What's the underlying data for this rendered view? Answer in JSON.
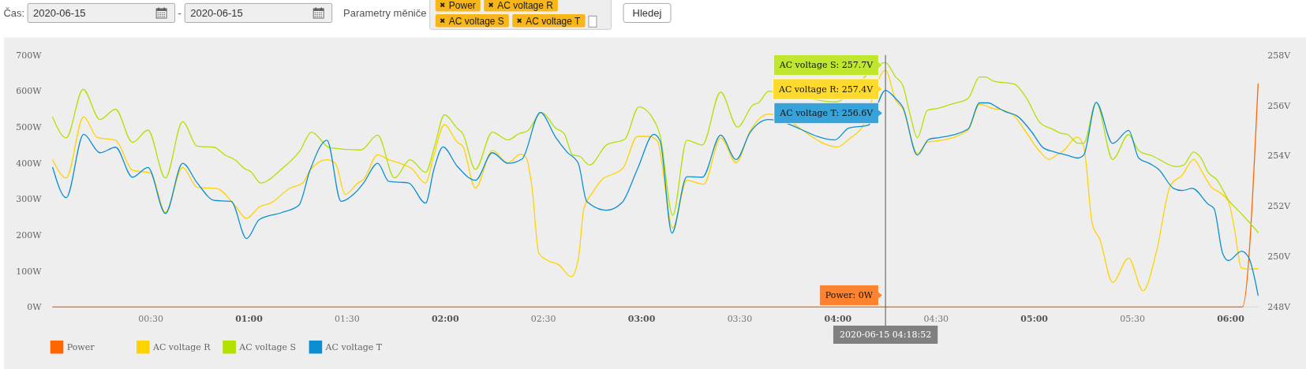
{
  "chart_data": {
    "type": "line",
    "xlim": [
      0,
      6.14
    ],
    "xticks": [
      {
        "value": 0.5,
        "label": "00:30"
      },
      {
        "value": 1,
        "label": "01:00"
      },
      {
        "value": 1.5,
        "label": "01:30"
      },
      {
        "value": 2,
        "label": "02:00"
      },
      {
        "value": 2.5,
        "label": "02:30"
      },
      {
        "value": 3,
        "label": "03:00"
      },
      {
        "value": 3.5,
        "label": "03:30"
      },
      {
        "value": 4,
        "label": "04:00"
      },
      {
        "value": 4.5,
        "label": "04:30"
      },
      {
        "value": 5,
        "label": "05:00"
      },
      {
        "value": 5.5,
        "label": "05:30"
      },
      {
        "value": 6,
        "label": "06:00"
      }
    ],
    "ylim": [
      0,
      700
    ],
    "yticks": [
      {
        "value": 0,
        "label": "0W"
      },
      {
        "value": 100,
        "label": "100W"
      },
      {
        "value": 200,
        "label": "200W"
      },
      {
        "value": 300,
        "label": "300W"
      },
      {
        "value": 400,
        "label": "400W"
      },
      {
        "value": 500,
        "label": "500W"
      },
      {
        "value": 600,
        "label": "600W"
      },
      {
        "value": 700,
        "label": "700W"
      }
    ],
    "y2lim": [
      248,
      258
    ],
    "y2ticks": [
      {
        "value": 248,
        "label": "248V"
      },
      {
        "value": 250,
        "label": "250V"
      },
      {
        "value": 252,
        "label": "252V"
      },
      {
        "value": 254,
        "label": "254V"
      },
      {
        "value": 256,
        "label": "256V"
      },
      {
        "value": 258,
        "label": "258V"
      }
    ],
    "legend": "bottom left",
    "series": [
      {
        "name": "Power",
        "color": "#ff6600",
        "x": [
          0,
          5.99,
          6.06,
          6.14
        ],
        "values": [
          0,
          0,
          0,
          620
        ]
      },
      {
        "name": "AC voltage R",
        "color": "#ffd200",
        "axis": "y2",
        "x": [
          0,
          0.0692,
          0.1579,
          0.2271,
          0.3204,
          0.4066,
          0.4999,
          0.5745,
          0.6621,
          0.7367,
          0.8372,
          0.9234,
          0.988,
          1.0526,
          1.11,
          1.2105,
          1.2751,
          1.311,
          1.3972,
          1.4402,
          1.4905,
          1.5551,
          1.5838,
          1.6556,
          1.713,
          1.7704,
          1.8278,
          1.8996,
          1.9426,
          1.9957,
          2.0603,
          2.089,
          2.1536,
          2.2397,
          2.3187,
          2.3833,
          2.412,
          2.4407,
          2.4766,
          2.5197,
          2.5771,
          2.6417,
          2.6775,
          2.7062,
          2.7493,
          2.8067,
          2.8498,
          2.9072,
          2.979,
          3.0364,
          3.0795,
          3.1584,
          3.2302,
          3.3163,
          3.4025,
          3.4814,
          3.5532,
          3.6465,
          3.9984,
          4.0558,
          4.1203,
          4.2421,
          4.2938,
          4.3306,
          4.4044,
          4.456,
          4.515,
          4.6623,
          4.7213,
          4.795,
          4.8392,
          4.8981,
          4.9571,
          5.0308,
          5.075,
          5.1045,
          5.1487,
          5.2194,
          5.2519,
          5.2961,
          5.3329,
          5.3993,
          5.4804,
          5.5541,
          5.6204,
          5.6941,
          5.7531,
          5.812,
          5.8562,
          5.9004,
          5.9446,
          5.9889,
          6.0183,
          6.0552,
          6.092,
          6.14
        ],
        "values": [
          253.84,
          253.12,
          255.55,
          254.73,
          254.62,
          253.43,
          253.31,
          251.75,
          253.54,
          252.75,
          252.7,
          252.08,
          251.52,
          251.97,
          252.12,
          252.72,
          252.92,
          253.43,
          253.84,
          253.7,
          252.47,
          252.92,
          253.06,
          254.04,
          253.84,
          253.7,
          253.5,
          252.92,
          254.04,
          255.24,
          254.54,
          254.38,
          252.72,
          254.21,
          253.73,
          254.06,
          253.93,
          252.81,
          250.13,
          249.85,
          249.68,
          249.2,
          249.9,
          251.91,
          252.53,
          253.12,
          253.26,
          253.54,
          254.77,
          254.77,
          254.6,
          251.13,
          253.03,
          252.87,
          254.71,
          253.73,
          254.99,
          255.66,
          254.35,
          254.66,
          255.1,
          257.4,
          256.21,
          255.87,
          254.09,
          254.55,
          254.6,
          255.01,
          256.04,
          255.87,
          255.81,
          255.58,
          254.95,
          254.15,
          253.86,
          253.98,
          254.2,
          254.74,
          254.37,
          251.27,
          250.7,
          248.98,
          249.94,
          248.64,
          250.13,
          252.83,
          253.23,
          253.86,
          253.34,
          252.77,
          252.54,
          252.19,
          251.16,
          249.55,
          249.5,
          249.52
        ]
      },
      {
        "name": "AC voltage S",
        "color": "#b2e000",
        "axis": "y2",
        "x": [
          0,
          0.0692,
          0.1553,
          0.2415,
          0.3204,
          0.4066,
          0.4855,
          0.5745,
          0.6621,
          0.7367,
          0.8229,
          0.8803,
          0.9234,
          0.9808,
          1.0095,
          1.0597,
          1.1674,
          1.2607,
          1.3182,
          1.4115,
          1.5694,
          1.6556,
          1.7416,
          1.8206,
          1.8996,
          1.9455,
          1.9957,
          2.0603,
          2.089,
          2.1536,
          2.2397,
          2.3187,
          2.3761,
          2.4191,
          2.4909,
          2.5627,
          2.6057,
          2.6488,
          2.6847,
          2.7349,
          2.8211,
          2.9144,
          2.9862,
          3.0723,
          3.0938,
          3.1584,
          3.2302,
          3.3092,
          3.4025,
          3.4886,
          3.5676,
          3.5963,
          3.6465,
          3.9838,
          4.2421,
          4.2938,
          4.3306,
          4.3675,
          4.4044,
          4.456,
          4.5002,
          4.5739,
          4.6623,
          4.7213,
          4.7508,
          4.795,
          4.8981,
          4.9571,
          5.0308,
          5.0898,
          5.134,
          5.1708,
          5.2224,
          5.2519,
          5.3153,
          5.3993,
          5.4804,
          5.532,
          5.6057,
          5.7236,
          5.7604,
          5.812,
          5.8489,
          5.8857,
          5.9299,
          5.9889,
          6.0478,
          6.092,
          6.14
        ],
        "values": [
          255.53,
          254.71,
          256.64,
          255.44,
          255.85,
          254.53,
          255.02,
          253.12,
          255.35,
          254.38,
          254.34,
          254.02,
          253.87,
          253.48,
          253.37,
          252.92,
          253.48,
          254.21,
          254.94,
          254.32,
          254.23,
          254.82,
          253.12,
          253.84,
          253.34,
          254.38,
          255.63,
          255.1,
          254.88,
          253.46,
          254.94,
          254.63,
          254.88,
          254.99,
          255.72,
          255.1,
          254.88,
          254.04,
          253.98,
          253.63,
          254.43,
          254.66,
          255.94,
          255.27,
          254.82,
          251.64,
          254.62,
          254.43,
          256.53,
          255.14,
          256.02,
          256.11,
          256.56,
          256.14,
          257.7,
          257.13,
          256.79,
          255.64,
          254.72,
          255.81,
          255.87,
          256.04,
          256.27,
          257.13,
          257.13,
          256.96,
          256.85,
          256.33,
          255.3,
          255.07,
          254.9,
          254.84,
          254.5,
          254.5,
          256.12,
          253.86,
          254.84,
          254.21,
          253.98,
          253.57,
          253.63,
          254.15,
          253.91,
          253.34,
          253.05,
          252.25,
          251.76,
          251.39,
          250.96
        ]
      },
      {
        "name": "AC voltage T",
        "color": "#0c8fd0",
        "axis": "y2",
        "x": [
          0,
          0.0692,
          0.1579,
          0.2415,
          0.3204,
          0.4066,
          0.4855,
          0.5745,
          0.6621,
          0.7367,
          0.8229,
          0.9091,
          0.988,
          1.0526,
          1.1674,
          1.2535,
          1.311,
          1.3972,
          1.469,
          1.5407,
          1.5838,
          1.6556,
          1.713,
          1.8134,
          1.8996,
          1.9426,
          1.9885,
          2.0603,
          2.1536,
          2.2397,
          2.3187,
          2.3905,
          2.4837,
          2.5627,
          2.6201,
          2.6775,
          2.7206,
          2.8211,
          2.9,
          2.979,
          3.0622,
          3.0938,
          3.1541,
          3.2302,
          3.3092,
          3.4025,
          3.4814,
          3.5532,
          3.6465,
          3.9838,
          4.0556,
          4.1532,
          4.2421,
          4.2938,
          4.3306,
          4.4044,
          4.4634,
          4.515,
          4.6623,
          4.7213,
          4.7655,
          4.8097,
          4.8539,
          4.9129,
          4.9866,
          5.0455,
          5.1045,
          5.1634,
          5.2224,
          5.2519,
          5.3153,
          5.3993,
          5.4804,
          5.532,
          5.5909,
          5.6351,
          5.7088,
          5.7531,
          5.8046,
          5.8857,
          5.9152,
          5.9594,
          5.9889,
          6.0552,
          6.092,
          6.14
        ],
        "values": [
          253.54,
          252.34,
          254.85,
          254.12,
          254.34,
          253.15,
          253.54,
          251.71,
          253.7,
          252.92,
          252.23,
          252.19,
          250.71,
          251.47,
          251.75,
          252.03,
          253.43,
          254.62,
          252.19,
          252.53,
          252.92,
          253.7,
          252.98,
          252.92,
          252.12,
          253.48,
          254.35,
          253.59,
          253.03,
          254.12,
          253.7,
          253.87,
          255.72,
          254.73,
          254.15,
          253.7,
          252.19,
          251.84,
          252.14,
          253.48,
          254.85,
          254.6,
          250.93,
          253.17,
          253.15,
          254.82,
          253.85,
          254.94,
          255.44,
          254.63,
          255.1,
          255.21,
          256.6,
          256.27,
          255.93,
          254.03,
          254.66,
          254.72,
          255.06,
          256.1,
          256.1,
          255.93,
          255.75,
          255.58,
          254.95,
          254.32,
          254.15,
          254.03,
          253.91,
          254.03,
          256.12,
          254.49,
          255.01,
          253.91,
          253.68,
          253.45,
          252.71,
          252.62,
          252.71,
          252.08,
          251.91,
          250.13,
          249.84,
          250.21,
          249.96,
          248.46
        ]
      }
    ],
    "ref_lines": [
      {
        "axis": "x",
        "value": 4.2421,
        "label": "2020-06-15 04:18:52",
        "color": "#555555"
      }
    ],
    "annotations": [
      "Čas:",
      "2020-06-15",
      "-",
      "2020-06-15",
      "Parametry měniče",
      "Hledej",
      "Power: 0W",
      "AC voltage R: 257.4V",
      "AC voltage S: 257.7V",
      "AC voltage T: 256.6V"
    ]
  }
}
